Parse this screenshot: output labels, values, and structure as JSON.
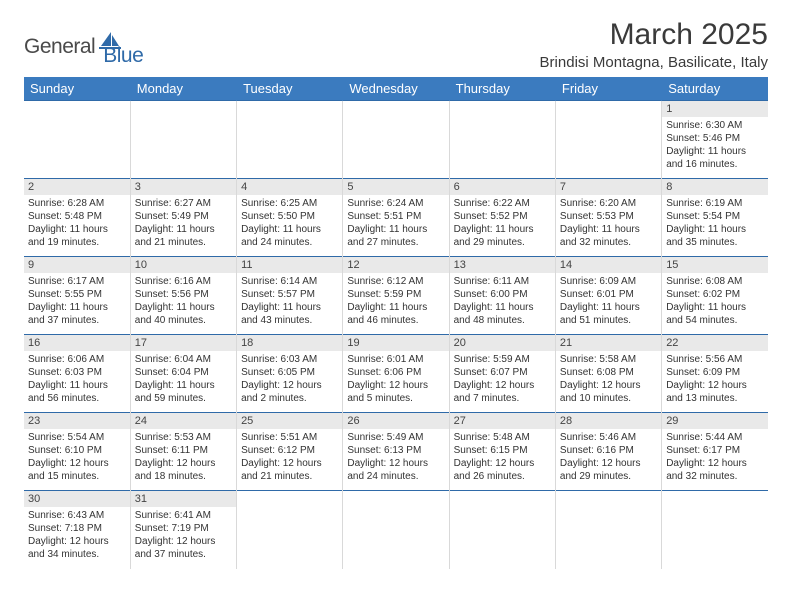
{
  "logo": {
    "text1": "General",
    "text2": "Blue"
  },
  "title": "March 2025",
  "location": "Brindisi Montagna, Basilicate, Italy",
  "colors": {
    "header_bg": "#3b7bbf",
    "header_text": "#ffffff",
    "row_border": "#2f6aa8",
    "cell_border": "#d9d9d9",
    "daynum_bg": "#e9e9e9",
    "text": "#333333",
    "logo_gray": "#4a4a4a",
    "logo_blue": "#2f6aa8"
  },
  "weekdays": [
    "Sunday",
    "Monday",
    "Tuesday",
    "Wednesday",
    "Thursday",
    "Friday",
    "Saturday"
  ],
  "weeks": [
    [
      null,
      null,
      null,
      null,
      null,
      null,
      {
        "d": "1",
        "sr": "6:30 AM",
        "ss": "5:46 PM",
        "dl": "11 hours and 16 minutes."
      }
    ],
    [
      {
        "d": "2",
        "sr": "6:28 AM",
        "ss": "5:48 PM",
        "dl": "11 hours and 19 minutes."
      },
      {
        "d": "3",
        "sr": "6:27 AM",
        "ss": "5:49 PM",
        "dl": "11 hours and 21 minutes."
      },
      {
        "d": "4",
        "sr": "6:25 AM",
        "ss": "5:50 PM",
        "dl": "11 hours and 24 minutes."
      },
      {
        "d": "5",
        "sr": "6:24 AM",
        "ss": "5:51 PM",
        "dl": "11 hours and 27 minutes."
      },
      {
        "d": "6",
        "sr": "6:22 AM",
        "ss": "5:52 PM",
        "dl": "11 hours and 29 minutes."
      },
      {
        "d": "7",
        "sr": "6:20 AM",
        "ss": "5:53 PM",
        "dl": "11 hours and 32 minutes."
      },
      {
        "d": "8",
        "sr": "6:19 AM",
        "ss": "5:54 PM",
        "dl": "11 hours and 35 minutes."
      }
    ],
    [
      {
        "d": "9",
        "sr": "6:17 AM",
        "ss": "5:55 PM",
        "dl": "11 hours and 37 minutes."
      },
      {
        "d": "10",
        "sr": "6:16 AM",
        "ss": "5:56 PM",
        "dl": "11 hours and 40 minutes."
      },
      {
        "d": "11",
        "sr": "6:14 AM",
        "ss": "5:57 PM",
        "dl": "11 hours and 43 minutes."
      },
      {
        "d": "12",
        "sr": "6:12 AM",
        "ss": "5:59 PM",
        "dl": "11 hours and 46 minutes."
      },
      {
        "d": "13",
        "sr": "6:11 AM",
        "ss": "6:00 PM",
        "dl": "11 hours and 48 minutes."
      },
      {
        "d": "14",
        "sr": "6:09 AM",
        "ss": "6:01 PM",
        "dl": "11 hours and 51 minutes."
      },
      {
        "d": "15",
        "sr": "6:08 AM",
        "ss": "6:02 PM",
        "dl": "11 hours and 54 minutes."
      }
    ],
    [
      {
        "d": "16",
        "sr": "6:06 AM",
        "ss": "6:03 PM",
        "dl": "11 hours and 56 minutes."
      },
      {
        "d": "17",
        "sr": "6:04 AM",
        "ss": "6:04 PM",
        "dl": "11 hours and 59 minutes."
      },
      {
        "d": "18",
        "sr": "6:03 AM",
        "ss": "6:05 PM",
        "dl": "12 hours and 2 minutes."
      },
      {
        "d": "19",
        "sr": "6:01 AM",
        "ss": "6:06 PM",
        "dl": "12 hours and 5 minutes."
      },
      {
        "d": "20",
        "sr": "5:59 AM",
        "ss": "6:07 PM",
        "dl": "12 hours and 7 minutes."
      },
      {
        "d": "21",
        "sr": "5:58 AM",
        "ss": "6:08 PM",
        "dl": "12 hours and 10 minutes."
      },
      {
        "d": "22",
        "sr": "5:56 AM",
        "ss": "6:09 PM",
        "dl": "12 hours and 13 minutes."
      }
    ],
    [
      {
        "d": "23",
        "sr": "5:54 AM",
        "ss": "6:10 PM",
        "dl": "12 hours and 15 minutes."
      },
      {
        "d": "24",
        "sr": "5:53 AM",
        "ss": "6:11 PM",
        "dl": "12 hours and 18 minutes."
      },
      {
        "d": "25",
        "sr": "5:51 AM",
        "ss": "6:12 PM",
        "dl": "12 hours and 21 minutes."
      },
      {
        "d": "26",
        "sr": "5:49 AM",
        "ss": "6:13 PM",
        "dl": "12 hours and 24 minutes."
      },
      {
        "d": "27",
        "sr": "5:48 AM",
        "ss": "6:15 PM",
        "dl": "12 hours and 26 minutes."
      },
      {
        "d": "28",
        "sr": "5:46 AM",
        "ss": "6:16 PM",
        "dl": "12 hours and 29 minutes."
      },
      {
        "d": "29",
        "sr": "5:44 AM",
        "ss": "6:17 PM",
        "dl": "12 hours and 32 minutes."
      }
    ],
    [
      {
        "d": "30",
        "sr": "6:43 AM",
        "ss": "7:18 PM",
        "dl": "12 hours and 34 minutes."
      },
      {
        "d": "31",
        "sr": "6:41 AM",
        "ss": "7:19 PM",
        "dl": "12 hours and 37 minutes."
      },
      null,
      null,
      null,
      null,
      null
    ]
  ],
  "labels": {
    "sunrise": "Sunrise:",
    "sunset": "Sunset:",
    "daylight": "Daylight:"
  }
}
